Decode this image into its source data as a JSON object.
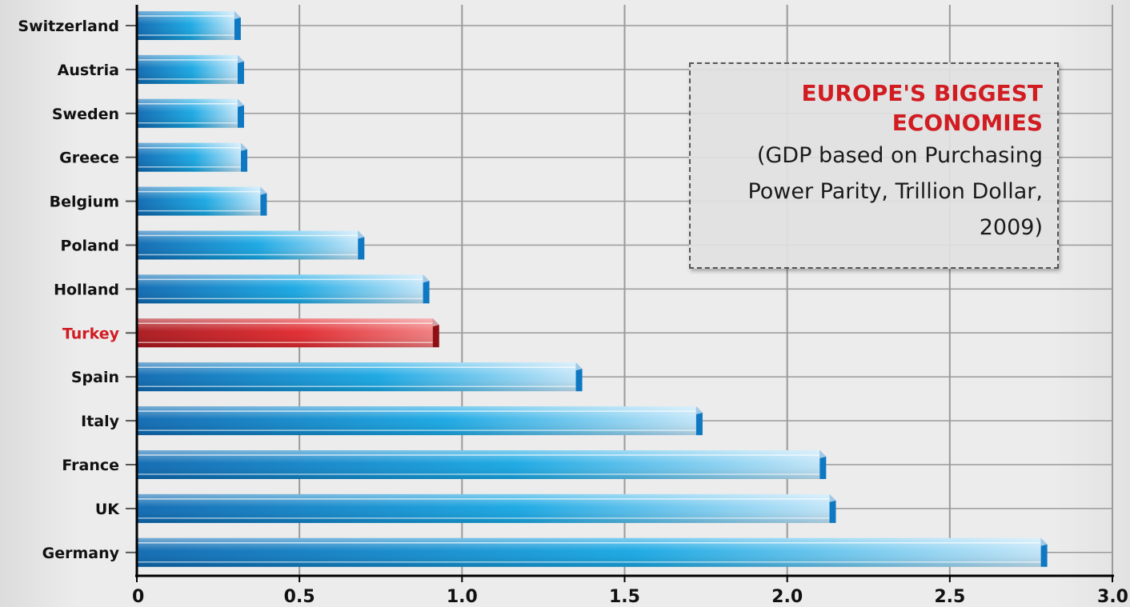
{
  "chart_data": {
    "type": "bar",
    "orientation": "horizontal",
    "title": "EUROPE'S BIGGEST ECONOMIES",
    "subtitle": "(GDP based on Purchasing Power Parity, Trillion Dollar, 2009)",
    "categories": [
      "Switzerland",
      "Austria",
      "Sweden",
      "Greece",
      "Belgium",
      "Poland",
      "Holland",
      "Turkey",
      "Spain",
      "Italy",
      "France",
      "UK",
      "Germany"
    ],
    "values": [
      0.3,
      0.31,
      0.31,
      0.32,
      0.38,
      0.68,
      0.88,
      0.91,
      1.35,
      1.72,
      2.1,
      2.13,
      2.78
    ],
    "highlight": "Turkey",
    "xlim": [
      0,
      3.0
    ],
    "xticks": [
      "0",
      "0.5",
      "1.0",
      "1.5",
      "2.0",
      "2.5",
      "3.0"
    ],
    "xlabel": "",
    "ylabel": "",
    "grid": true,
    "colors": {
      "bar": "#1d8fd6",
      "highlight": "#d11c22",
      "grid": "#9a9a9a"
    }
  }
}
